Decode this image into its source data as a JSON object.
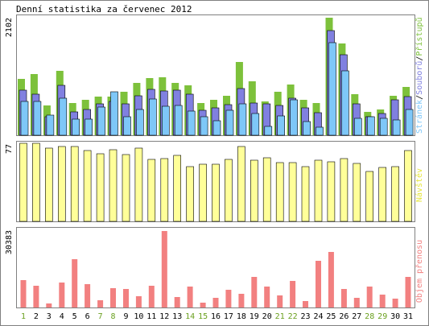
{
  "chart_data": {
    "type": "bar",
    "title": "Denní statistika za červenec 2012",
    "days": [
      "1",
      "2",
      "3",
      "4",
      "5",
      "6",
      "7",
      "8",
      "9",
      "10",
      "11",
      "12",
      "13",
      "14",
      "15",
      "16",
      "17",
      "18",
      "19",
      "20",
      "21",
      "22",
      "23",
      "24",
      "25",
      "26",
      "27",
      "28",
      "29",
      "30",
      "31"
    ],
    "weekend_days": [
      "1",
      "7",
      "8",
      "14",
      "15",
      "21",
      "22",
      "28",
      "29"
    ],
    "colors": {
      "weekday_label": "#000000",
      "weekend_label": "#6aa01e",
      "pristupu": "#7dc13b",
      "souboru": "#8080e0",
      "stranek": "#7ec7f8",
      "navstev": "#ffff99",
      "objem": "#f28080",
      "frame": "#808080",
      "gridline": "#999999"
    },
    "panels": [
      {
        "id": "traffic",
        "ymax_label": "2102",
        "ymax": 2102,
        "legend": {
          "stranek": "Stránek",
          "sep1": "/",
          "souboru": "Souborů",
          "sep2": "/",
          "pristupu": "Přístupů"
        },
        "series": [
          {
            "name": "Přístupů",
            "key": "pristupu",
            "values": [
              990,
              1080,
              530,
              1140,
              570,
              620,
              680,
              680,
              770,
              920,
              1010,
              1020,
              920,
              880,
              570,
              630,
              690,
              1290,
              950,
              600,
              760,
              900,
              620,
              570,
              2080,
              1620,
              720,
              410,
              460,
              690,
              850
            ]
          },
          {
            "name": "Souborů",
            "key": "souboru",
            "values": [
              800,
              720,
              330,
              880,
              410,
              460,
              560,
              600,
              560,
              700,
              810,
              780,
              800,
              730,
              440,
              480,
              540,
              830,
              570,
              560,
              530,
              650,
              480,
              400,
              1850,
              1420,
              550,
              320,
              390,
              630,
              680
            ]
          },
          {
            "name": "Stránek",
            "key": "stranek",
            "values": [
              590,
              590,
              350,
              660,
              280,
              280,
              490,
              760,
              330,
              460,
              640,
              510,
              520,
              420,
              330,
              260,
              440,
              560,
              390,
              160,
              340,
              630,
              240,
              140,
              1630,
              1130,
              300,
              320,
              300,
              270,
              460
            ]
          }
        ]
      },
      {
        "id": "visits",
        "ymax_label": "77",
        "ymax": 77,
        "legend": {
          "navstev": "Návštěv"
        },
        "series": [
          {
            "name": "Návštěv",
            "key": "navstev",
            "values": [
              77,
              77,
              72,
              74,
              74,
              70,
              67,
              71,
              66,
              72,
              61,
              62,
              65,
              54,
              56,
              56,
              61,
              74,
              60,
              63,
              58,
              58,
              54,
              60,
              59,
              62,
              57,
              49,
              53,
              54,
              70
            ]
          }
        ]
      },
      {
        "id": "volume",
        "ymax_label": "30383",
        "ymax": 30383,
        "legend": {
          "objem": "Objem přenosu"
        },
        "series": [
          {
            "name": "Objem přenosu",
            "key": "objem",
            "values": [
              10800,
              8700,
              1600,
              9900,
              19100,
              9300,
              2900,
              7600,
              7200,
              4500,
              8500,
              30383,
              4300,
              8400,
              1900,
              3700,
              6900,
              5500,
              12100,
              8300,
              4700,
              10500,
              2600,
              18700,
              22100,
              7200,
              3900,
              8300,
              5000,
              3500,
              12100
            ]
          }
        ]
      }
    ]
  }
}
